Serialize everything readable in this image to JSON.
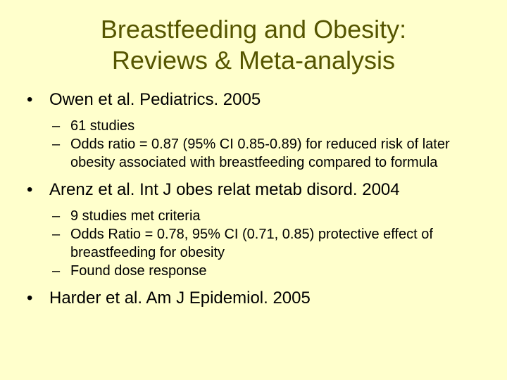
{
  "title": {
    "line1": "Breastfeeding and Obesity:",
    "line2": "Reviews & Meta-analysis"
  },
  "bullet_char": "•",
  "dash_char": "–",
  "bullets": [
    {
      "text": "Owen et al.  Pediatrics.  2005",
      "subs": [
        "61 studies",
        "Odds ratio = 0.87 (95% CI 0.85-0.89) for reduced risk of later obesity associated with breastfeeding compared to formula"
      ]
    },
    {
      "text": "Arenz et al.  Int J obes relat metab disord. 2004",
      "subs": [
        "9 studies met criteria",
        "Odds Ratio = 0.78, 95% CI (0.71, 0.85) protective effect of breastfeeding for obesity",
        "Found dose response"
      ]
    },
    {
      "text": "Harder et al.  Am J Epidemiol.  2005",
      "subs": []
    }
  ]
}
